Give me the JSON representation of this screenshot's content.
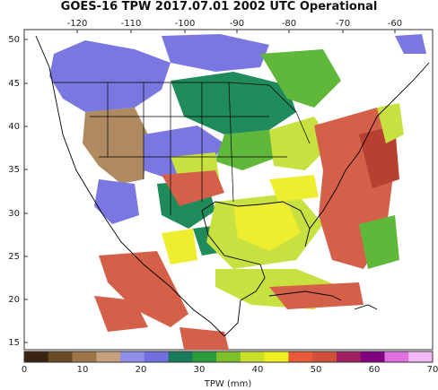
{
  "title": "GOES-16 TPW 2017.07.01 2002 UTC Operational",
  "x_ticks": [
    "-120",
    "-110",
    "-100",
    "-90",
    "-80",
    "-70",
    "-60"
  ],
  "y_ticks": [
    "50",
    "45",
    "40",
    "35",
    "30",
    "25",
    "20",
    "15"
  ],
  "colorbar": {
    "label": "TPW (mm)",
    "ticks": [
      "0",
      "10",
      "20",
      "30",
      "40",
      "50",
      "60",
      "70"
    ],
    "colors": [
      "#3a2410",
      "#6b4a26",
      "#9c7646",
      "#c5a07a",
      "#8f8fe8",
      "#6f6fe0",
      "#187a5a",
      "#2e9a3e",
      "#7fbf2a",
      "#c8e02a",
      "#f0f020",
      "#e85a3a",
      "#d0503a",
      "#a02060",
      "#800080",
      "#e070e0",
      "#f4b8f4"
    ]
  },
  "legend_colors": {
    "dry": "#b08a60",
    "low": "#7a78e0",
    "mid": "#1f8a5a",
    "green": "#5fb83a",
    "yellowgreen": "#c8e040",
    "yellow": "#eeee30",
    "red": "#d4604a",
    "darkred": "#b84030"
  }
}
